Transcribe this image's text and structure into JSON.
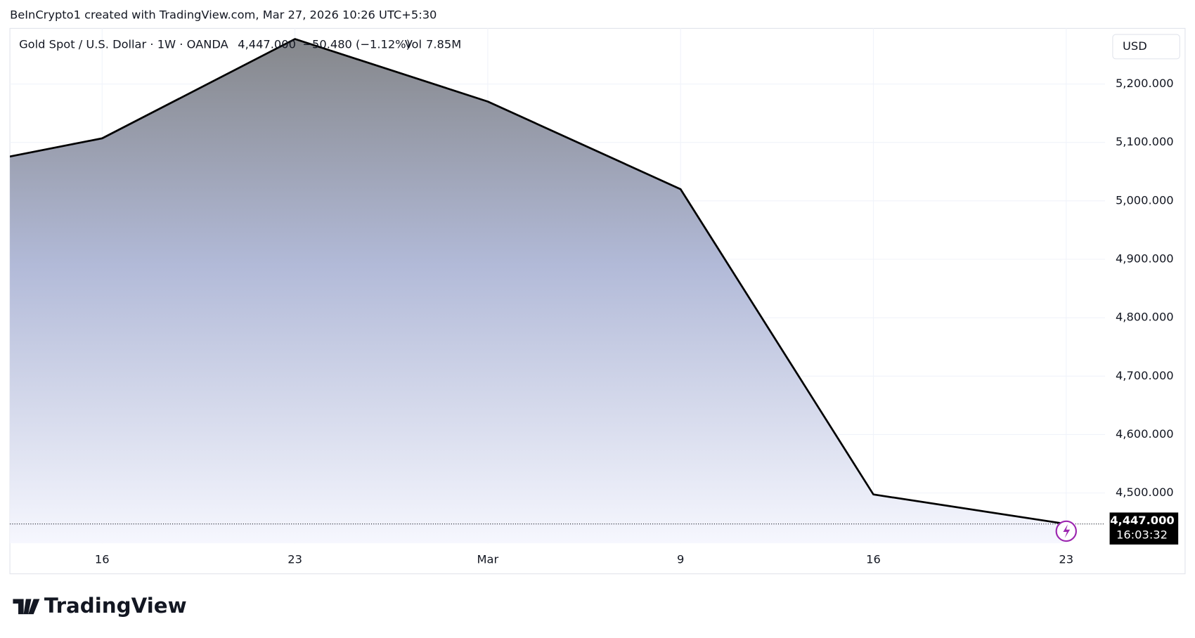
{
  "header": "BeInCrypto1 created with TradingView.com, Mar 27, 2026 10:26 UTC+5:30",
  "chart_data": {
    "type": "area",
    "symbol": "Gold Spot / U.S. Dollar · 1W · OANDA",
    "last": "4,447.000",
    "change": "−50.480 (−1.12%)",
    "volume_label": "Vol",
    "volume": "7.85M",
    "currency": "USD",
    "categories": [
      null,
      "16",
      "23",
      "Mar",
      "9",
      "16",
      "23"
    ],
    "values": [
      5042,
      5107,
      5277,
      5170,
      5020,
      4497.48,
      4447
    ],
    "line_color": "#000000",
    "ylim": [
      4413.8,
      5295.2
    ],
    "yticks": [
      {
        "value": 4500,
        "label": "4,500.000"
      },
      {
        "value": 4600,
        "label": "4,600.000"
      },
      {
        "value": 4700,
        "label": "4,700.000"
      },
      {
        "value": 4800,
        "label": "4,800.000"
      },
      {
        "value": 4900,
        "label": "4,900.000"
      },
      {
        "value": 5000,
        "label": "5,000.000"
      },
      {
        "value": 5100,
        "label": "5,100.000"
      },
      {
        "value": 5200,
        "label": "5,200.000"
      }
    ],
    "last_value": {
      "value": 4447,
      "label": "4,447.000"
    },
    "countdown": "16:03:32",
    "grid": true
  },
  "footer": "TradingView"
}
